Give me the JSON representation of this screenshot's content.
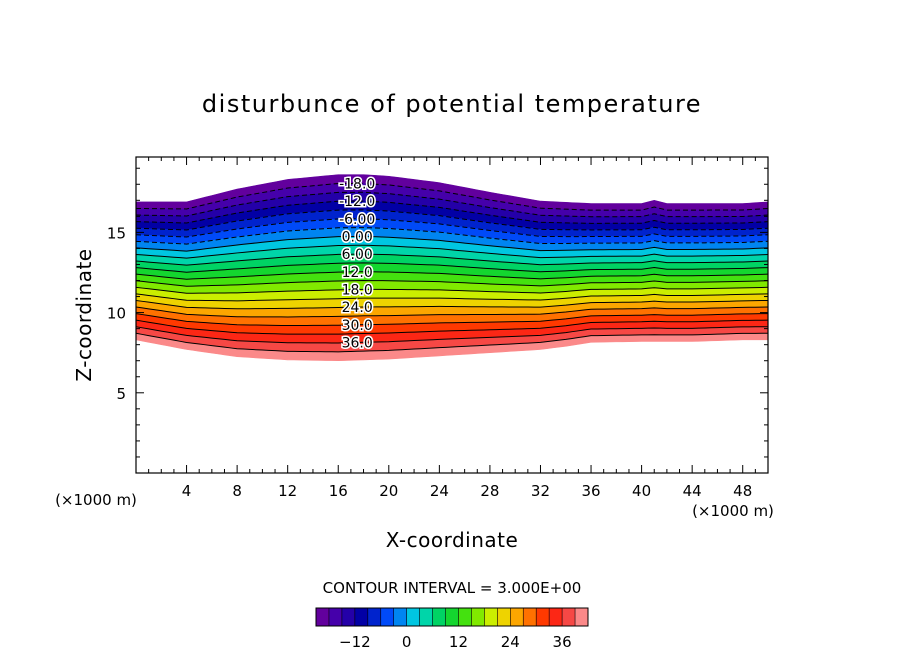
{
  "chart_data": {
    "type": "contour",
    "title": "disturbunce of potential temperature",
    "xlabel": "X-coordinate",
    "ylabel": "Z-coordinate",
    "x_unit": "(×1000 m)",
    "z_unit": "(×1000 m)",
    "xlim": [
      0,
      50
    ],
    "ylim": [
      0,
      19.7
    ],
    "x_ticks": [
      4,
      8,
      12,
      16,
      20,
      24,
      28,
      32,
      36,
      40,
      44,
      48
    ],
    "y_ticks": [
      5,
      10,
      15
    ],
    "contour_interval_label": "CONTOUR INTERVAL = 3.000E+00",
    "contour_labels": [
      "-18.0",
      "-12.0",
      "-6.00",
      "0.00",
      "6.00",
      "12.0",
      "18.0",
      "24.0",
      "30.0",
      "36.0"
    ],
    "colorbar": {
      "min": -21,
      "max": 42,
      "ticks": [
        -12,
        0,
        12,
        24,
        36
      ]
    },
    "top_boundary": {
      "x": [
        0,
        4,
        8,
        12,
        16,
        18,
        20,
        24,
        28,
        32,
        36,
        40,
        41,
        42,
        44,
        48,
        50
      ],
      "z": [
        16.9,
        16.9,
        17.7,
        18.3,
        18.6,
        18.6,
        18.5,
        18.1,
        17.5,
        16.95,
        16.8,
        16.8,
        17.0,
        16.8,
        16.8,
        16.8,
        16.9
      ]
    },
    "bottom_boundary": {
      "x": [
        0,
        4,
        8,
        12,
        16,
        20,
        24,
        28,
        32,
        34,
        36,
        40,
        44,
        48,
        50
      ],
      "z": [
        8.3,
        7.7,
        7.25,
        7.05,
        7.0,
        7.1,
        7.3,
        7.5,
        7.7,
        7.9,
        8.15,
        8.2,
        8.2,
        8.3,
        8.3
      ]
    }
  }
}
